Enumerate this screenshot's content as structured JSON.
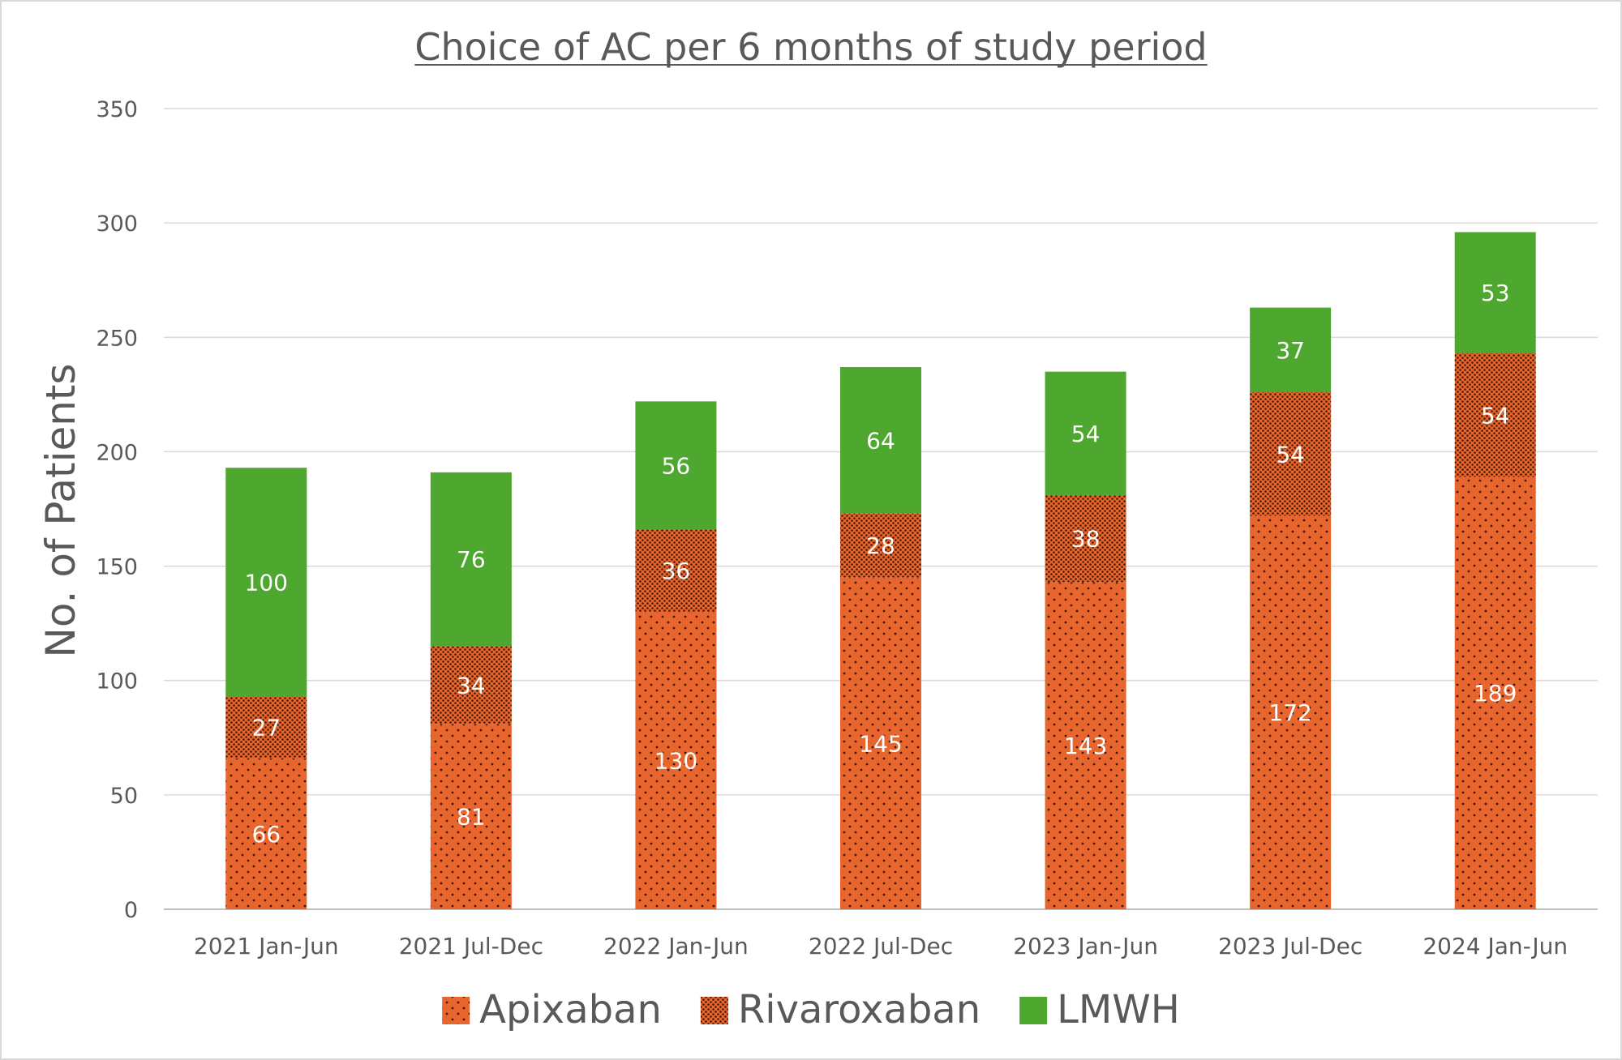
{
  "chart_data": {
    "type": "bar",
    "stacked": true,
    "title": "Choice of AC per 6 months of study period",
    "xlabel": "",
    "ylabel": "No. of Patients",
    "ylim": [
      0,
      350
    ],
    "yticks": [
      0,
      50,
      100,
      150,
      200,
      250,
      300,
      350
    ],
    "grid": true,
    "legend_position": "bottom",
    "categories": [
      "2021 Jan-Jun",
      "2021 Jul-Dec",
      "2022 Jan-Jun",
      "2022 Jul-Dec",
      "2023 Jan-Jun",
      "2023 Jul-Dec",
      "2024 Jan-Jun"
    ],
    "series": [
      {
        "name": "Apixaban",
        "values": [
          66,
          81,
          130,
          145,
          143,
          172,
          189
        ],
        "color": "#e8652e",
        "pattern": "sparse-dots"
      },
      {
        "name": "Rivaroxaban",
        "values": [
          27,
          34,
          36,
          28,
          38,
          54,
          54
        ],
        "color": "#e8652e",
        "pattern": "dense-dots"
      },
      {
        "name": "LMWH",
        "values": [
          100,
          76,
          56,
          64,
          54,
          37,
          53
        ],
        "color": "#4ea72e",
        "pattern": "solid"
      }
    ]
  }
}
